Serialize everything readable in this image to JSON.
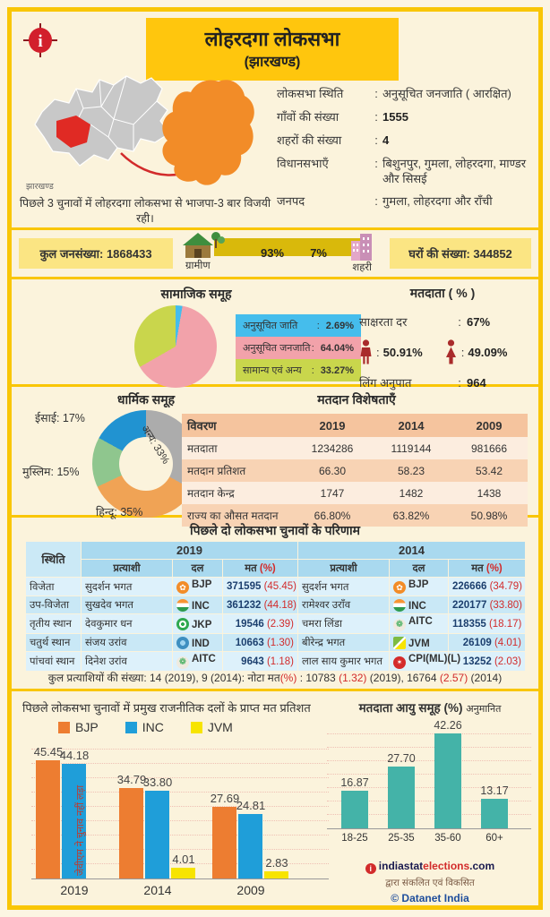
{
  "header": {
    "title": "लोहरदगा लोकसभा",
    "subtitle": "(झारखण्ड)"
  },
  "overview": {
    "state_label": "झारखण्ड",
    "map_caption": "पिछले 3 चुनावों में लोहरदगा लोकसभा से भाजपा-3 बार विजयी रही।",
    "facts": [
      {
        "label": "लोकसभा स्थिति",
        "value": "अनुसूचित जनजाति ( आरक्षित)",
        "bold": false
      },
      {
        "label": "गाँवों की संख्या",
        "value": "1555",
        "bold": true
      },
      {
        "label": "शहरों की संख्या",
        "value": "4",
        "bold": true
      },
      {
        "label": "विधानसभाएँ",
        "value": "बिशुनपुर, गुमला, लोहरदगा, माण्डर और सिसई",
        "bold": false
      },
      {
        "label": "जनपद",
        "value": "गुमला, लोहरदगा और राँची",
        "bold": false
      }
    ]
  },
  "population_strip": {
    "total": "कुल जनसंख्या: 1868433",
    "rural_pct": "93%",
    "rural_label": "ग्रामीण",
    "urban_pct": "7%",
    "urban_label": "शहरी",
    "households": "घरों की संख्या: 344852"
  },
  "voters": {
    "heading": "मतदाता ( % )",
    "literacy_label": "साक्षरता दर",
    "literacy_value": "67%",
    "male_pct": "50.91%",
    "female_pct": "49.09%",
    "sex_ratio_label": "लिंग अनुपात",
    "sex_ratio_value": "964"
  },
  "results": {
    "title": "पिछले दो लोकसभा चुनावों के परिणाम",
    "col_position": "स्थिति",
    "col_candidate": "प्रत्याशी",
    "col_party": "दल",
    "col_votes": "मत",
    "col_votes_pct": "(%)",
    "years": [
      "2019",
      "2014"
    ],
    "rows": [
      {
        "position": "विजेता",
        "e2019": {
          "candidate": "सुदर्शन भगत",
          "party": "BJP",
          "symbol": "bjp",
          "votes": "371595",
          "pct": "(45.45)"
        },
        "e2014": {
          "candidate": "सुदर्शन भगत",
          "party": "BJP",
          "symbol": "bjp",
          "votes": "226666",
          "pct": "(34.79)"
        }
      },
      {
        "position": "उप-विजेता",
        "e2019": {
          "candidate": "सुखदेव भगत",
          "party": "INC",
          "symbol": "inc",
          "votes": "361232",
          "pct": "(44.18)"
        },
        "e2014": {
          "candidate": "रामेश्वर उराँव",
          "party": "INC",
          "symbol": "inc",
          "votes": "220177",
          "pct": "(33.80)"
        }
      },
      {
        "position": "तृतीय स्थान",
        "e2019": {
          "candidate": "देवकुमार धन",
          "party": "JKP",
          "symbol": "jkp",
          "votes": "19546",
          "pct": "(2.39)"
        },
        "e2014": {
          "candidate": "चमरा लिंडा",
          "party": "AITC",
          "symbol": "aitc",
          "votes": "118355",
          "pct": "(18.17)"
        }
      },
      {
        "position": "चतुर्थ स्थान",
        "e2019": {
          "candidate": "संजय उरांव",
          "party": "IND",
          "symbol": "ind",
          "votes": "10663",
          "pct": "(1.30)"
        },
        "e2014": {
          "candidate": "बीरेन्द्र भगत",
          "party": "JVM",
          "symbol": "jvm",
          "votes": "26109",
          "pct": "(4.01)"
        }
      },
      {
        "position": "पांचवां स्थान",
        "e2019": {
          "candidate": "दिनेश उरांव",
          "party": "AITC",
          "symbol": "aitc",
          "votes": "9643",
          "pct": "(1.18)"
        },
        "e2014": {
          "candidate": "लाल साय कुमार भगत",
          "party": "CPI(ML)(L)",
          "symbol": "cpiml",
          "votes": "13252",
          "pct": "(2.03)"
        }
      }
    ],
    "note_parts": [
      {
        "text": "कुल प्रत्याशियों की संख्या: 14 (2019), 9 (2014): नोटा मत",
        "red": false
      },
      {
        "text": "(%)",
        "red": true
      },
      {
        "text": " : 10783 ",
        "red": false
      },
      {
        "text": "(1.32)",
        "red": true
      },
      {
        "text": " (2019), 16764 ",
        "red": false
      },
      {
        "text": "(2.57)",
        "red": true
      },
      {
        "text": " (2014)",
        "red": false
      }
    ]
  },
  "footer": {
    "brand_prefix": "indiastat",
    "brand_mid": "elections",
    "brand_suffix": ".com",
    "line2": "द्वारा संकलित एवं विकसित",
    "line3": "© Datanet India"
  },
  "chart_data": [
    {
      "type": "pie",
      "title": "सामाजिक समूह",
      "labels": [
        "अनुसूचित जाति",
        "अनुसूचित जनजाति",
        "सामान्य एवं अन्य"
      ],
      "values": [
        2.69,
        64.04,
        33.27
      ],
      "colors": [
        "#45BDEC",
        "#F2A2AA",
        "#C9D64C"
      ]
    },
    {
      "type": "pie",
      "subtype": "donut",
      "title": "धार्मिक समूह",
      "labels": [
        "अन्य",
        "हिन्दू",
        "मुस्लिम",
        "ईसाई"
      ],
      "values": [
        33,
        35,
        15,
        17
      ],
      "colors": [
        "#ACACAC",
        "#F0A355",
        "#8FC68E",
        "#2193D1"
      ],
      "label_texts": [
        "अन्य: 33%",
        "हिन्दू: 35%",
        "मुस्लिम: 15%",
        "ईसाई: 17%"
      ]
    },
    {
      "type": "bar",
      "title": "पिछले लोकसभा चुनावों में प्रमुख राजनीतिक दलों के प्राप्त मत प्रतिशत",
      "categories": [
        "2019",
        "2014",
        "2009"
      ],
      "series": [
        {
          "name": "BJP",
          "color": "#ED7D31",
          "values": [
            45.45,
            34.79,
            27.69
          ]
        },
        {
          "name": "INC",
          "color": "#1F9ED9",
          "values": [
            44.18,
            33.8,
            24.81
          ]
        },
        {
          "name": "JVM",
          "color": "#F7E400",
          "values": [
            null,
            4.01,
            2.83
          ]
        }
      ],
      "annotation": "जेवीएम ने चुनाव नहीं लड़ा",
      "ylim": [
        0,
        50
      ],
      "grid": "dotted",
      "legend_position": "top"
    },
    {
      "type": "bar",
      "title": "मतदाता आयु समूह (%)",
      "subtitle": "अनुमानित",
      "categories": [
        "18-25",
        "25-35",
        "35-60",
        "60+"
      ],
      "values": [
        16.87,
        27.7,
        42.26,
        13.17
      ],
      "color": "#44B3A8",
      "ylim": [
        0,
        45
      ],
      "grid": "dotted"
    },
    {
      "type": "table",
      "title": "मतदान विशेषताएँ",
      "columns": [
        "विवरण",
        "2019",
        "2014",
        "2009"
      ],
      "rows": [
        [
          "मतदाता",
          "1234286",
          "1119144",
          "981666"
        ],
        [
          "मतदान प्रतिशत",
          "66.30",
          "58.23",
          "53.42"
        ],
        [
          "मतदान केन्द्र",
          "1747",
          "1482",
          "1438"
        ],
        [
          "राज्य का औसत मतदान",
          "66.80%",
          "63.82%",
          "50.98%"
        ]
      ]
    }
  ]
}
